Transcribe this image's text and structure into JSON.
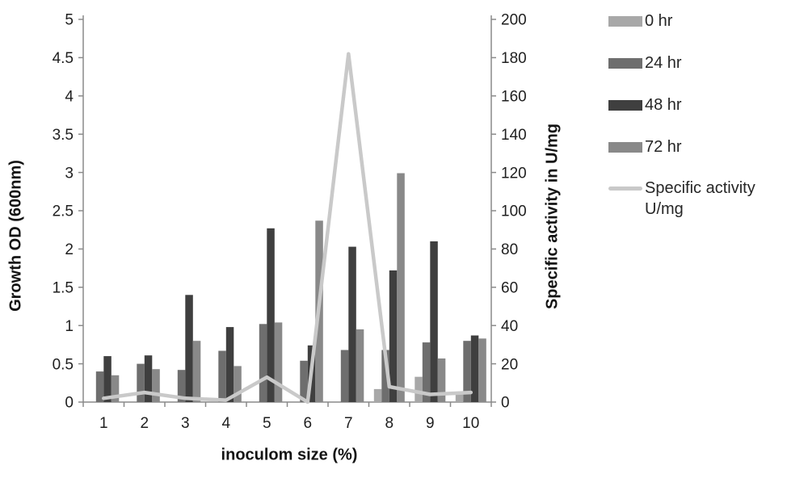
{
  "chart_data": {
    "type": "bar",
    "subtype": "grouped-bars-with-line-overlay",
    "title": "",
    "categories": [
      "1",
      "2",
      "3",
      "4",
      "5",
      "6",
      "7",
      "8",
      "9",
      "10"
    ],
    "x_axis": {
      "label": "inoculom size (%)"
    },
    "left_axis": {
      "label": "Growth OD (600nm)",
      "min": 0,
      "max": 5,
      "step": 0.5
    },
    "right_axis": {
      "label": "Specific activity in U/mg",
      "min": 0,
      "max": 200,
      "step": 20
    },
    "grid": false,
    "background": "#ffffff",
    "legend_position": "right",
    "series": [
      {
        "name": "0 hr",
        "type": "bar",
        "axis": "left",
        "color": "#a8a8a8",
        "values": [
          0,
          0,
          0,
          0,
          0,
          0,
          0,
          0.17,
          0.33,
          0.13
        ]
      },
      {
        "name": "24 hr",
        "type": "bar",
        "axis": "left",
        "color": "#6e6e6e",
        "values": [
          0.4,
          0.5,
          0.42,
          0.67,
          1.02,
          0.54,
          0.68,
          0.68,
          0.78,
          0.8
        ]
      },
      {
        "name": "48 hr",
        "type": "bar",
        "axis": "left",
        "color": "#3f3f3f",
        "values": [
          0.6,
          0.61,
          1.4,
          0.98,
          2.27,
          0.74,
          2.03,
          1.72,
          2.1,
          0.87
        ]
      },
      {
        "name": "72 hr",
        "type": "bar",
        "axis": "left",
        "color": "#898989",
        "values": [
          0.35,
          0.43,
          0.8,
          0.47,
          1.04,
          2.37,
          0.95,
          2.99,
          0.57,
          0.83
        ]
      },
      {
        "name": "Specific activity U/mg",
        "type": "line",
        "axis": "right",
        "color": "#c9c9c9",
        "values": [
          2,
          5,
          2,
          1,
          13,
          0,
          182,
          8,
          4,
          5
        ]
      }
    ]
  }
}
